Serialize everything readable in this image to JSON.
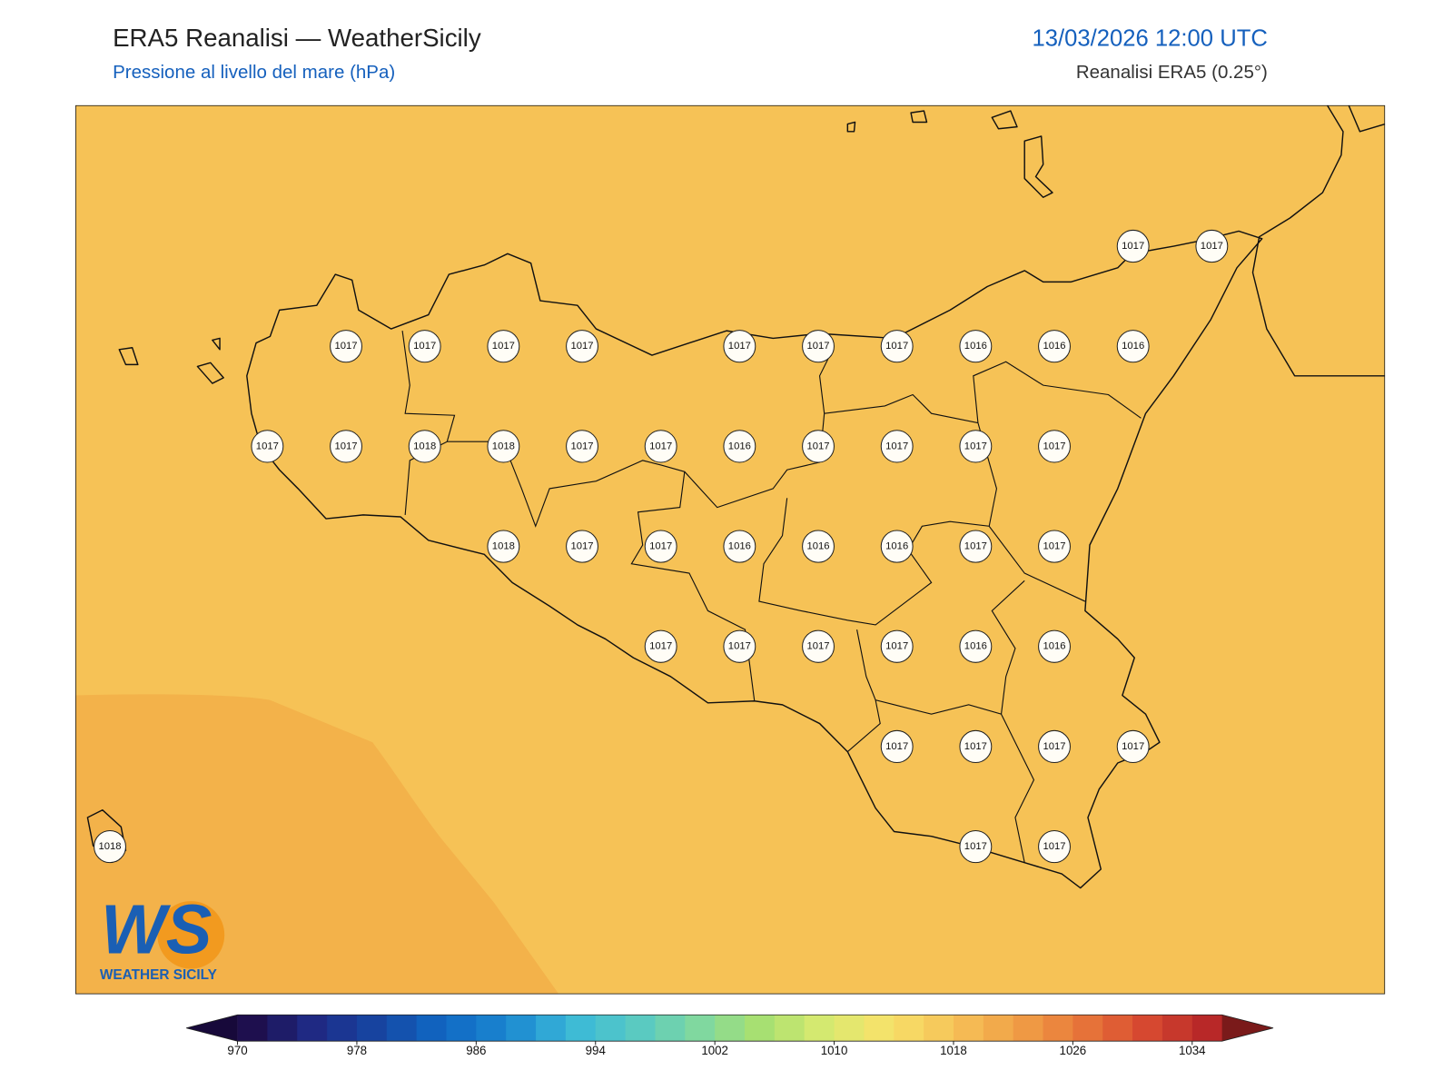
{
  "header": {
    "title": "ERA5 Reanalisi — WeatherSicily",
    "subtitle": "Pressione al livello del mare (hPa)",
    "datetime": "13/03/2026 12:00 UTC",
    "source": "Reanalisi ERA5 (0.25°)"
  },
  "stations": {
    "rows": [
      [
        null,
        null,
        null,
        null,
        null,
        null,
        null,
        null,
        null,
        null,
        null,
        null,
        null,
        1017,
        1017
      ],
      [
        null,
        null,
        null,
        1017,
        1017,
        1017,
        1017,
        null,
        1017,
        1017,
        1017,
        1016,
        1016,
        1016,
        null
      ],
      [
        null,
        null,
        1017,
        1017,
        1018,
        1018,
        1017,
        1017,
        1016,
        1017,
        1017,
        1017,
        1017,
        null,
        null
      ],
      [
        null,
        null,
        null,
        null,
        null,
        1018,
        1017,
        1017,
        1016,
        1016,
        1016,
        1017,
        1017,
        null,
        null
      ],
      [
        null,
        null,
        null,
        null,
        null,
        null,
        null,
        1017,
        1017,
        1017,
        1017,
        1016,
        1016,
        null,
        null
      ],
      [
        null,
        null,
        null,
        null,
        null,
        null,
        null,
        null,
        null,
        null,
        1017,
        1017,
        1017,
        1017,
        null
      ],
      [
        1018,
        null,
        null,
        null,
        null,
        null,
        null,
        null,
        null,
        null,
        null,
        1017,
        1017,
        null,
        null
      ]
    ]
  },
  "colorbar": {
    "lim": [
      970,
      1036
    ],
    "step": 2,
    "ticks": [
      970,
      978,
      986,
      994,
      1002,
      1010,
      1018,
      1026,
      1034
    ],
    "colors": [
      "#1e0f4e",
      "#1f2b86",
      "#1646a3",
      "#1068c4",
      "#1a86d0",
      "#3ab8d8",
      "#56c9c4",
      "#7fd8a0",
      "#a8e070",
      "#d8ea70",
      "#f8e26a",
      "#f6c358",
      "#f0a046",
      "#e8783a",
      "#d84a30",
      "#b82828"
    ],
    "under": "#17093a",
    "over": "#7a1a1a"
  },
  "logo": {
    "mark": "WS",
    "text": "WEATHER SICILY"
  }
}
